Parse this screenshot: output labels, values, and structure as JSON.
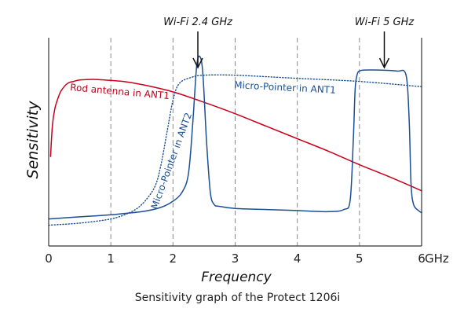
{
  "chart_data": {
    "type": "line",
    "xlabel": "Frequency",
    "ylabel": "Sensitivity",
    "xunit": "GHz",
    "xlim": [
      0,
      6
    ],
    "ylim": [
      0,
      1
    ],
    "xticks": [
      "0",
      "1",
      "2",
      "3",
      "4",
      "5",
      "6"
    ],
    "grid": "vertical dashed at each integer GHz",
    "caption": "Sensitivity graph of the Protect 1206i",
    "annotations": [
      {
        "text": "Wi-Fi 2.4 GHz",
        "x": 2.4
      },
      {
        "text": "Wi-Fi 5 GHz",
        "x": 5.4
      }
    ],
    "series": [
      {
        "name": "Rod antenna in ANT1",
        "color": "#c8001a",
        "style": "solid",
        "x": [
          0.03,
          0.06,
          0.1,
          0.15,
          0.2,
          0.3,
          0.4,
          0.5,
          0.7,
          0.9,
          1.2,
          1.5,
          2.0,
          2.5,
          3.0,
          3.5,
          4.0,
          4.5,
          5.0,
          5.5,
          6.0
        ],
        "y": [
          0.43,
          0.58,
          0.66,
          0.71,
          0.745,
          0.78,
          0.79,
          0.797,
          0.8,
          0.797,
          0.79,
          0.775,
          0.74,
          0.69,
          0.635,
          0.575,
          0.515,
          0.455,
          0.39,
          0.33,
          0.265
        ]
      },
      {
        "name": "Micro-Pointer in ANT1",
        "color": "#1a4f96",
        "style": "dotted",
        "x": [
          0.0,
          0.5,
          1.0,
          1.3,
          1.5,
          1.7,
          1.8,
          1.9,
          2.0,
          2.1,
          2.3,
          2.5,
          3.0,
          4.0,
          5.0,
          6.0
        ],
        "y": [
          0.1,
          0.11,
          0.13,
          0.16,
          0.2,
          0.28,
          0.38,
          0.54,
          0.7,
          0.78,
          0.81,
          0.82,
          0.82,
          0.805,
          0.79,
          0.765
        ]
      },
      {
        "name": "Micro-Pointer in ANT2",
        "color": "#1a4f96",
        "style": "solid",
        "x": [
          0.0,
          0.5,
          1.0,
          1.5,
          1.8,
          2.0,
          2.15,
          2.25,
          2.32,
          2.38,
          2.43,
          2.48,
          2.54,
          2.6,
          2.66,
          2.75,
          3.0,
          3.5,
          4.0,
          4.5,
          4.75,
          4.85,
          4.9,
          4.93,
          4.96,
          5.0,
          5.1,
          5.3,
          5.6,
          5.75,
          5.8,
          5.83,
          5.87,
          5.95,
          6.0
        ],
        "y": [
          0.13,
          0.14,
          0.15,
          0.165,
          0.185,
          0.215,
          0.26,
          0.35,
          0.6,
          0.86,
          0.91,
          0.83,
          0.5,
          0.26,
          0.2,
          0.19,
          0.18,
          0.175,
          0.17,
          0.165,
          0.175,
          0.22,
          0.5,
          0.75,
          0.82,
          0.84,
          0.845,
          0.845,
          0.84,
          0.82,
          0.6,
          0.3,
          0.2,
          0.17,
          0.16
        ]
      }
    ]
  }
}
